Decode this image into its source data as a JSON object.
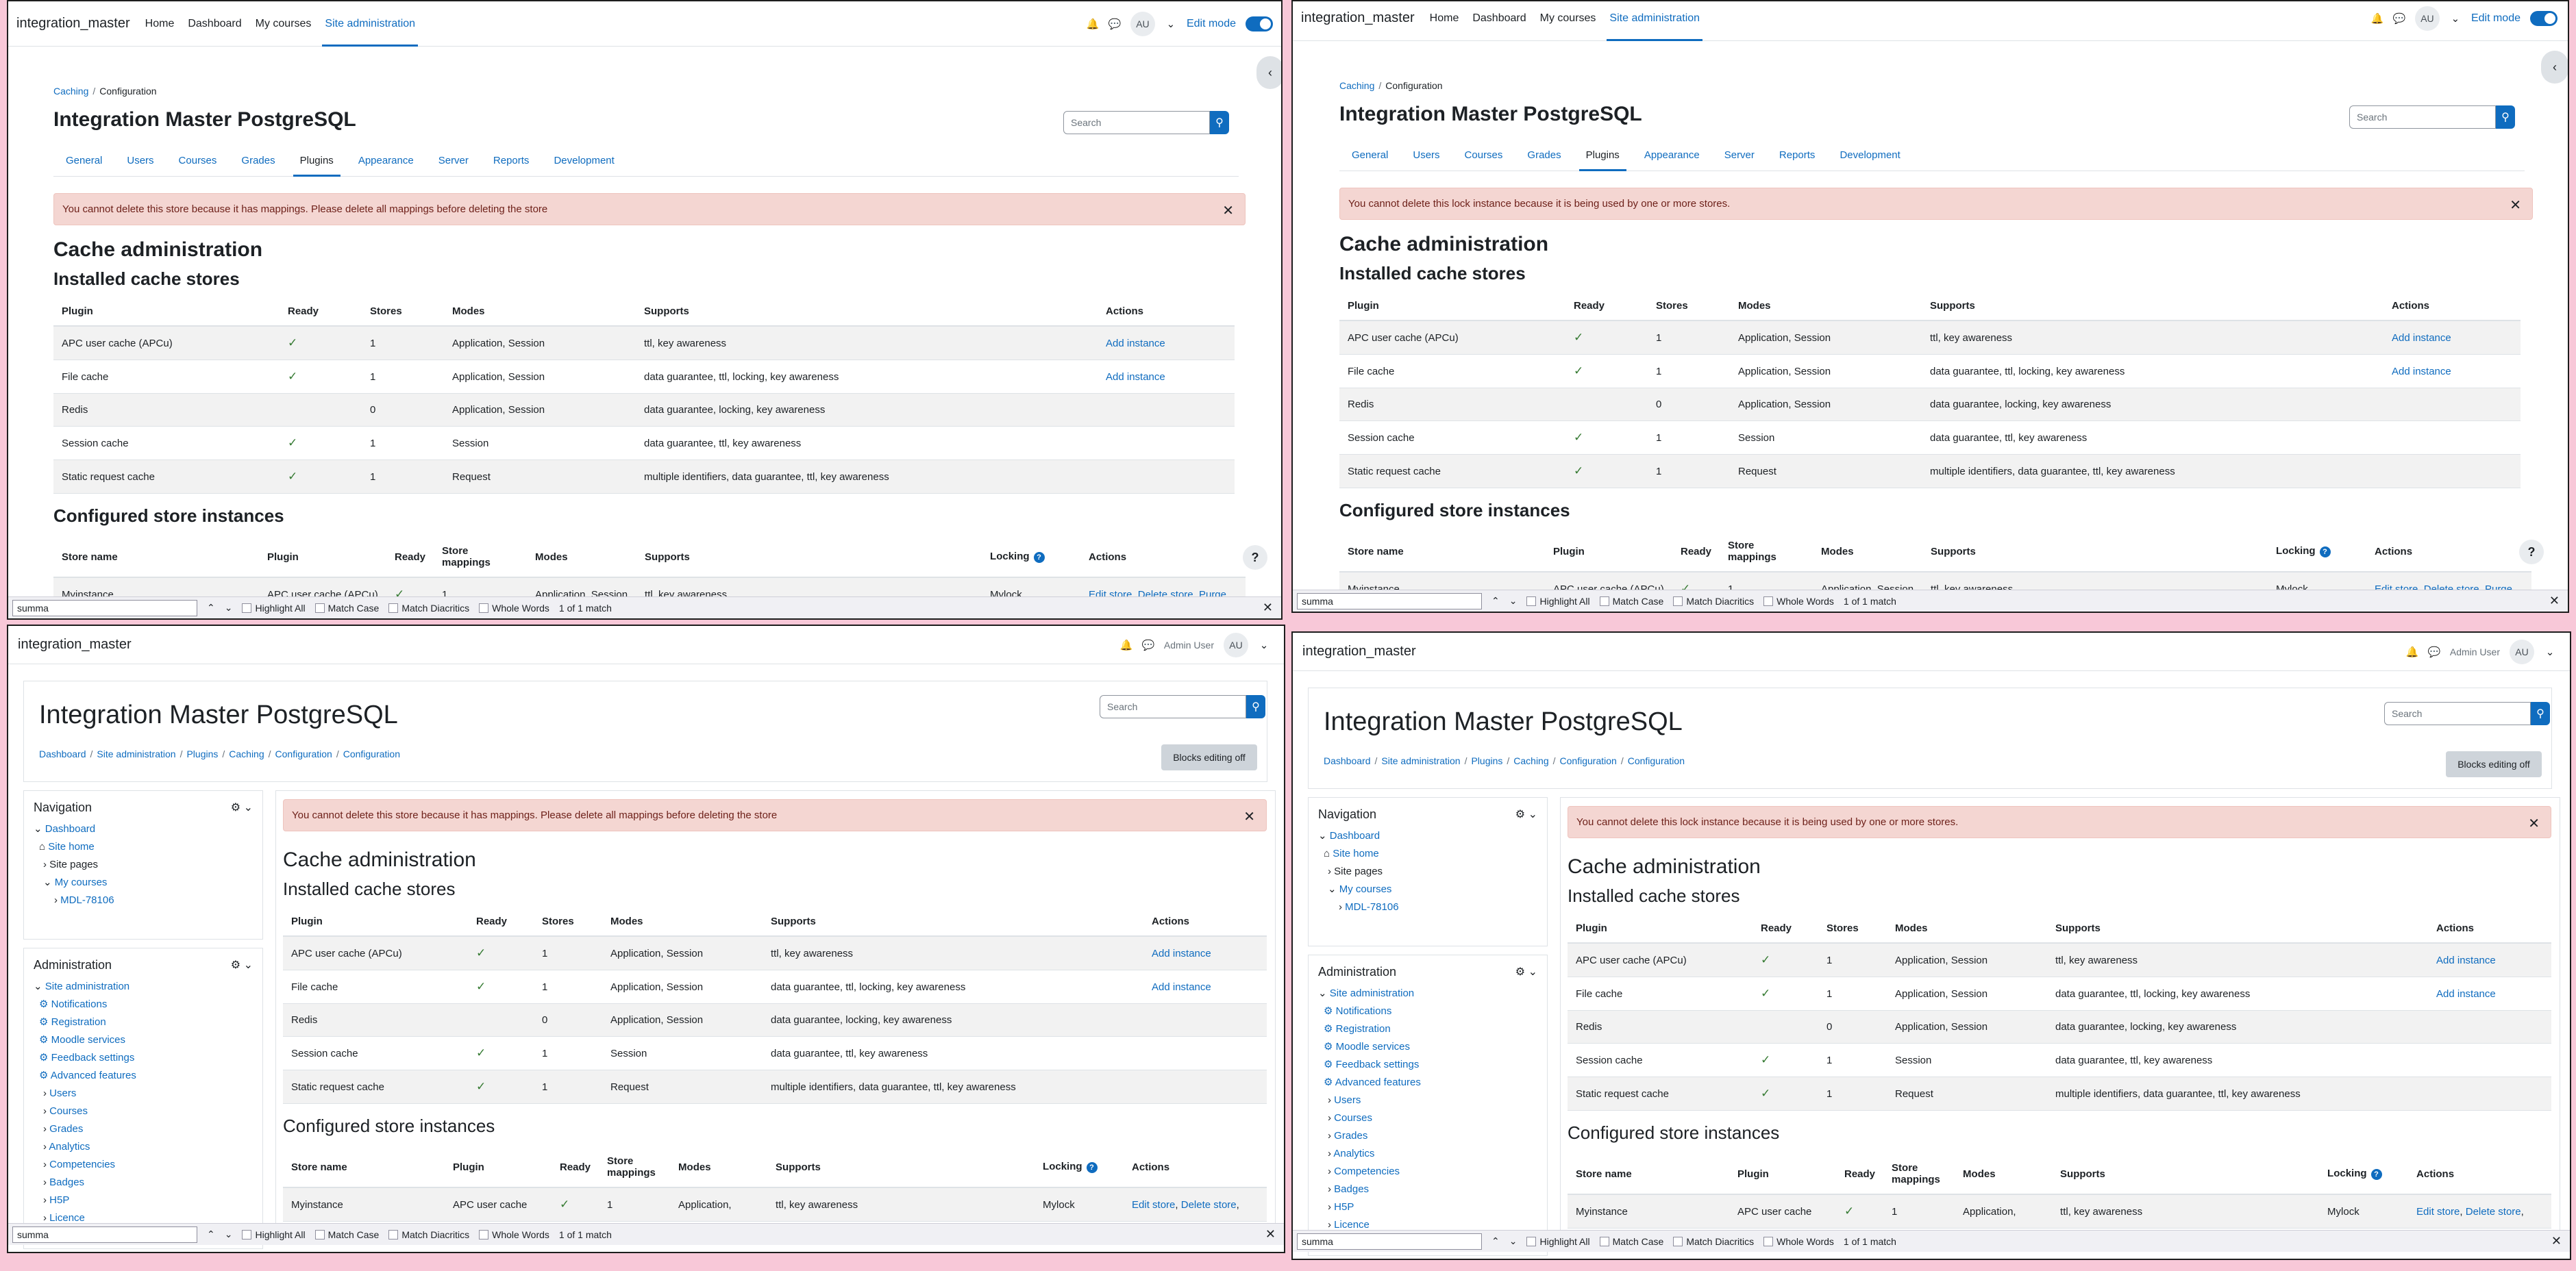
{
  "site": {
    "brand": "integration_master"
  },
  "primary_nav": [
    "Home",
    "Dashboard",
    "My courses",
    "Site administration"
  ],
  "user": {
    "initials": "AU",
    "name": "Admin User"
  },
  "edit_mode_label": "Edit mode",
  "breadcrumb_top": [
    "Caching",
    "Configuration"
  ],
  "page_title": "Integration Master PostgreSQL",
  "search_placeholder": "Search",
  "admin_tabs": [
    "General",
    "Users",
    "Courses",
    "Grades",
    "Plugins",
    "Appearance",
    "Server",
    "Reports",
    "Development"
  ],
  "alerts": {
    "store": "You cannot delete this store because it has mappings. Please delete all mappings before deleting the store",
    "lock": "You cannot delete this lock instance because it is being used by one or more stores."
  },
  "headings": {
    "cache_admin": "Cache administration",
    "installed": "Installed cache stores",
    "configured": "Configured store instances"
  },
  "installed_cols": [
    "Plugin",
    "Ready",
    "Stores",
    "Modes",
    "Supports",
    "Actions"
  ],
  "installed_rows": [
    {
      "plugin": "APC user cache (APCu)",
      "ready": "✓",
      "stores": "1",
      "modes": "Application, Session",
      "supports": "ttl, key awareness",
      "action": "Add instance"
    },
    {
      "plugin": "File cache",
      "ready": "✓",
      "stores": "1",
      "modes": "Application, Session",
      "supports": "data guarantee, ttl, locking, key awareness",
      "action": "Add instance"
    },
    {
      "plugin": "Redis",
      "ready": "",
      "stores": "0",
      "modes": "Application, Session",
      "supports": "data guarantee, locking, key awareness",
      "action": ""
    },
    {
      "plugin": "Session cache",
      "ready": "✓",
      "stores": "1",
      "modes": "Session",
      "supports": "data guarantee, ttl, key awareness",
      "action": ""
    },
    {
      "plugin": "Static request cache",
      "ready": "✓",
      "stores": "1",
      "modes": "Request",
      "supports": "multiple identifiers, data guarantee, ttl, key awareness",
      "action": ""
    }
  ],
  "configured_cols": [
    "Store name",
    "Plugin",
    "Ready",
    "Store mappings",
    "Modes",
    "Supports",
    "Locking",
    "Actions"
  ],
  "configured_row": {
    "name": "Myinstance",
    "plugin": "APC user cache (APCu)",
    "plugin_short": "APC user cache",
    "ready": "✓",
    "mappings": "1",
    "modes": "Application, Session",
    "modes_short": "Application,",
    "supports": "ttl, key awareness",
    "locking": "Mylock",
    "edit": "Edit store",
    "delete": "Delete store",
    "purge": "Purge",
    "sep": ","
  },
  "findbar": {
    "query": "summa",
    "highlight_all": "Highlight All",
    "match_case": "Match Case",
    "match_diacritics": "Match Diacritics",
    "whole_words": "Whole Words",
    "result": "1 of 1 match"
  },
  "classic_breadcrumb": [
    "Dashboard",
    "Site administration",
    "Plugins",
    "Caching",
    "Configuration",
    "Configuration"
  ],
  "blocks_editing": "Blocks editing off",
  "navigation_block": {
    "title": "Navigation",
    "items": [
      "Dashboard",
      "Site home",
      "Site pages",
      "My courses",
      "MDL-78106"
    ]
  },
  "administration_block": {
    "title": "Administration",
    "items": [
      "Site administration",
      "Notifications",
      "Registration",
      "Moodle services",
      "Feedback settings",
      "Advanced features",
      "Users",
      "Courses",
      "Grades",
      "Analytics",
      "Competencies",
      "Badges",
      "H5P",
      "Licence"
    ]
  },
  "help_label": "?",
  "colors": {
    "primary": "#0f6cbf",
    "alert_bg": "#f4d6d2",
    "success": "#357a32",
    "frame": "#f8c8d8"
  }
}
